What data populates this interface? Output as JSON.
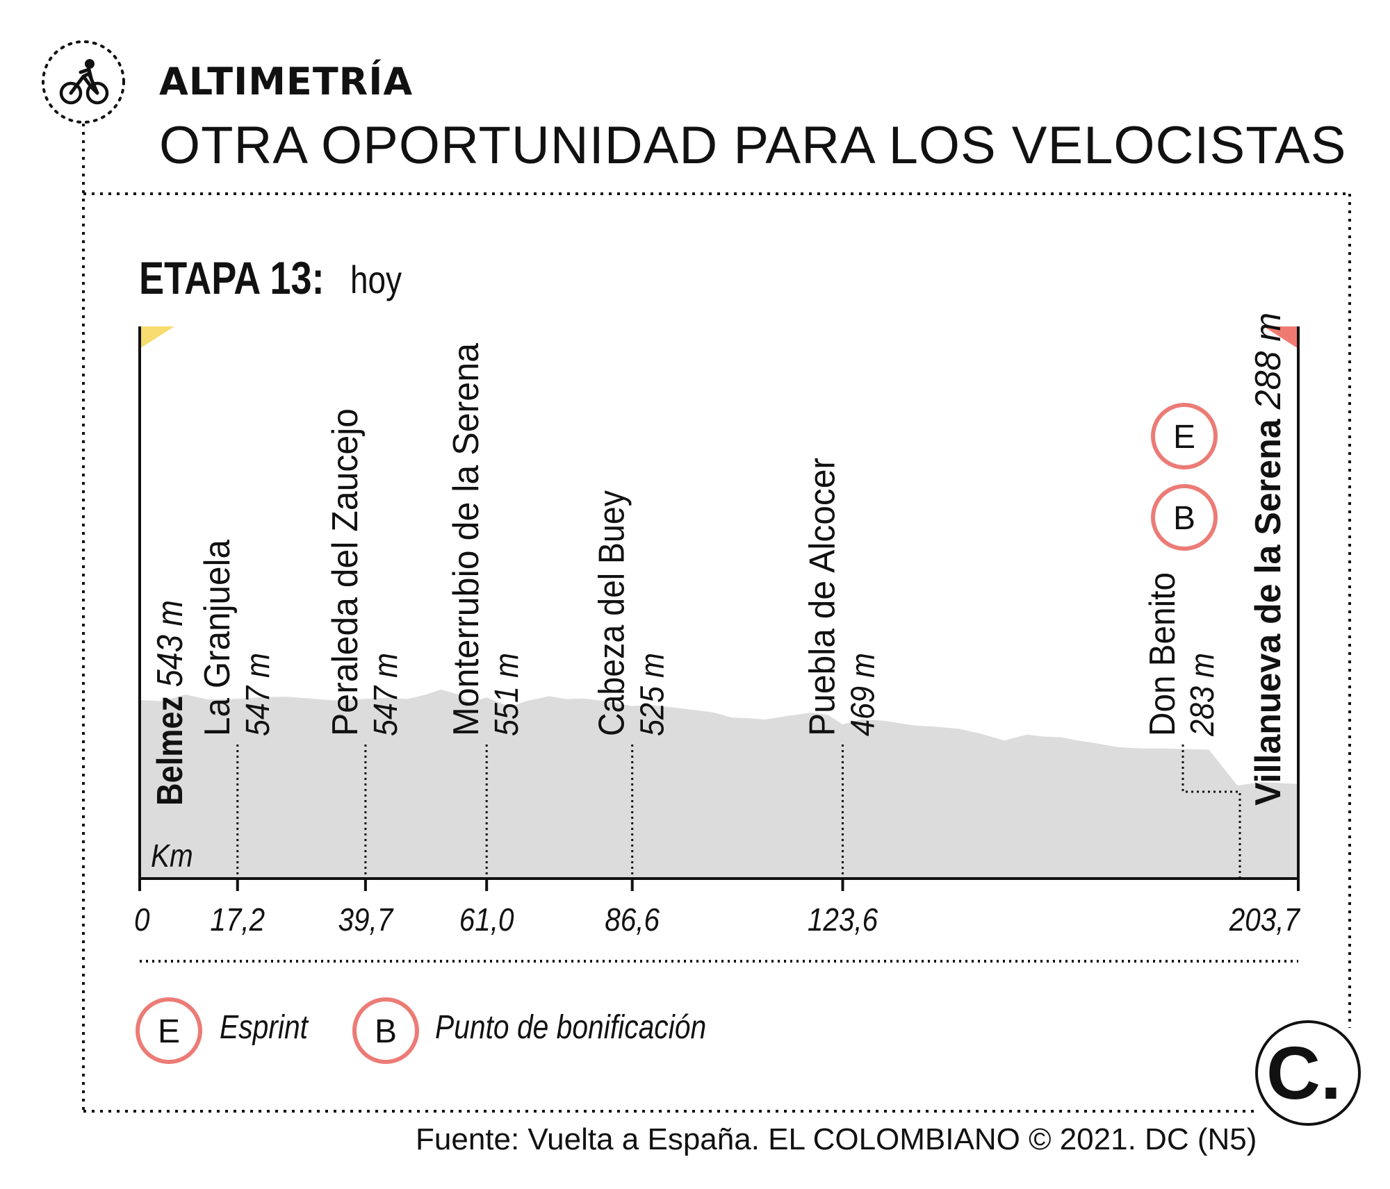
{
  "header": {
    "kicker": "ALTIMETRÍA",
    "headline": "OTRA OPORTUNIDAD PARA LOS VELOCISTAS",
    "icon": "cyclist-icon"
  },
  "stage": {
    "label_bold": "ETAPA 13:",
    "label_light": "hoy"
  },
  "legend": {
    "items": [
      {
        "badge": "E",
        "label": "Esprint"
      },
      {
        "badge": "B",
        "label": "Punto de bonificación"
      }
    ]
  },
  "footer": {
    "source": "Fuente: Vuelta a España. EL COLOMBIANO © 2021. DC (N5)",
    "logo": "C."
  },
  "chart_data": {
    "type": "area",
    "xlabel": "Km",
    "xlim": [
      0,
      203.7
    ],
    "tick_labels": [
      "0",
      "17,2",
      "39,7",
      "61,0",
      "86,6",
      "123,6",
      "203,7"
    ],
    "tick_values": [
      0,
      17.2,
      39.7,
      61.0,
      86.6,
      123.6,
      203.7
    ],
    "colors": {
      "profile": "#dcdcdc",
      "start_flag": "#f7dc6f",
      "finish_flag": "#f07a72",
      "badge_ring": "#ec7b76"
    },
    "waypoints": [
      {
        "name": "Belmez",
        "altitude": "543 m",
        "km": 0,
        "bold": true
      },
      {
        "name": "La Granjuela",
        "altitude": "547 m",
        "km": 17.2,
        "bold": false
      },
      {
        "name": "Peraleda del Zaucejo",
        "altitude": "547 m",
        "km": 39.7,
        "bold": false
      },
      {
        "name": "Monterrubio de la Serena",
        "altitude": "551 m",
        "km": 61.0,
        "bold": false
      },
      {
        "name": "Cabeza del Buey",
        "altitude": "525 m",
        "km": 86.6,
        "bold": false
      },
      {
        "name": "Puebla de Alcocer",
        "altitude": "469 m",
        "km": 123.6,
        "bold": false
      },
      {
        "name": "Don Benito",
        "altitude": "283 m",
        "km": 193.0,
        "bold": false
      },
      {
        "name": "Villanueva de la Serena",
        "altitude": "288 m",
        "km": 203.7,
        "bold": true
      }
    ],
    "badges": [
      "E",
      "B"
    ],
    "profile": {
      "km": [
        0,
        4,
        8,
        12,
        17.2,
        22,
        26,
        30,
        34,
        39.7,
        44,
        47,
        50,
        53,
        56,
        58,
        61,
        64,
        66,
        68,
        72,
        75,
        78,
        82,
        86.6,
        90,
        94,
        98,
        101,
        104,
        107,
        110,
        114,
        118,
        121,
        123.6,
        127,
        131,
        136,
        140,
        144,
        148,
        152,
        156,
        159,
        162,
        165,
        168,
        172,
        176,
        180,
        184,
        188,
        193,
        197,
        200,
        203.7
      ],
      "alt": [
        543,
        540,
        560,
        545,
        547,
        552,
        553,
        548,
        542,
        547,
        550,
        546,
        558,
        575,
        560,
        535,
        551,
        530,
        528,
        540,
        555,
        546,
        548,
        540,
        525,
        528,
        520,
        512,
        505,
        490,
        488,
        484,
        495,
        505,
        498,
        469,
        485,
        480,
        466,
        462,
        456,
        440,
        420,
        438,
        432,
        430,
        420,
        412,
        400,
        396,
        396,
        394,
        392,
        283,
        293,
        291,
        288
      ]
    }
  }
}
